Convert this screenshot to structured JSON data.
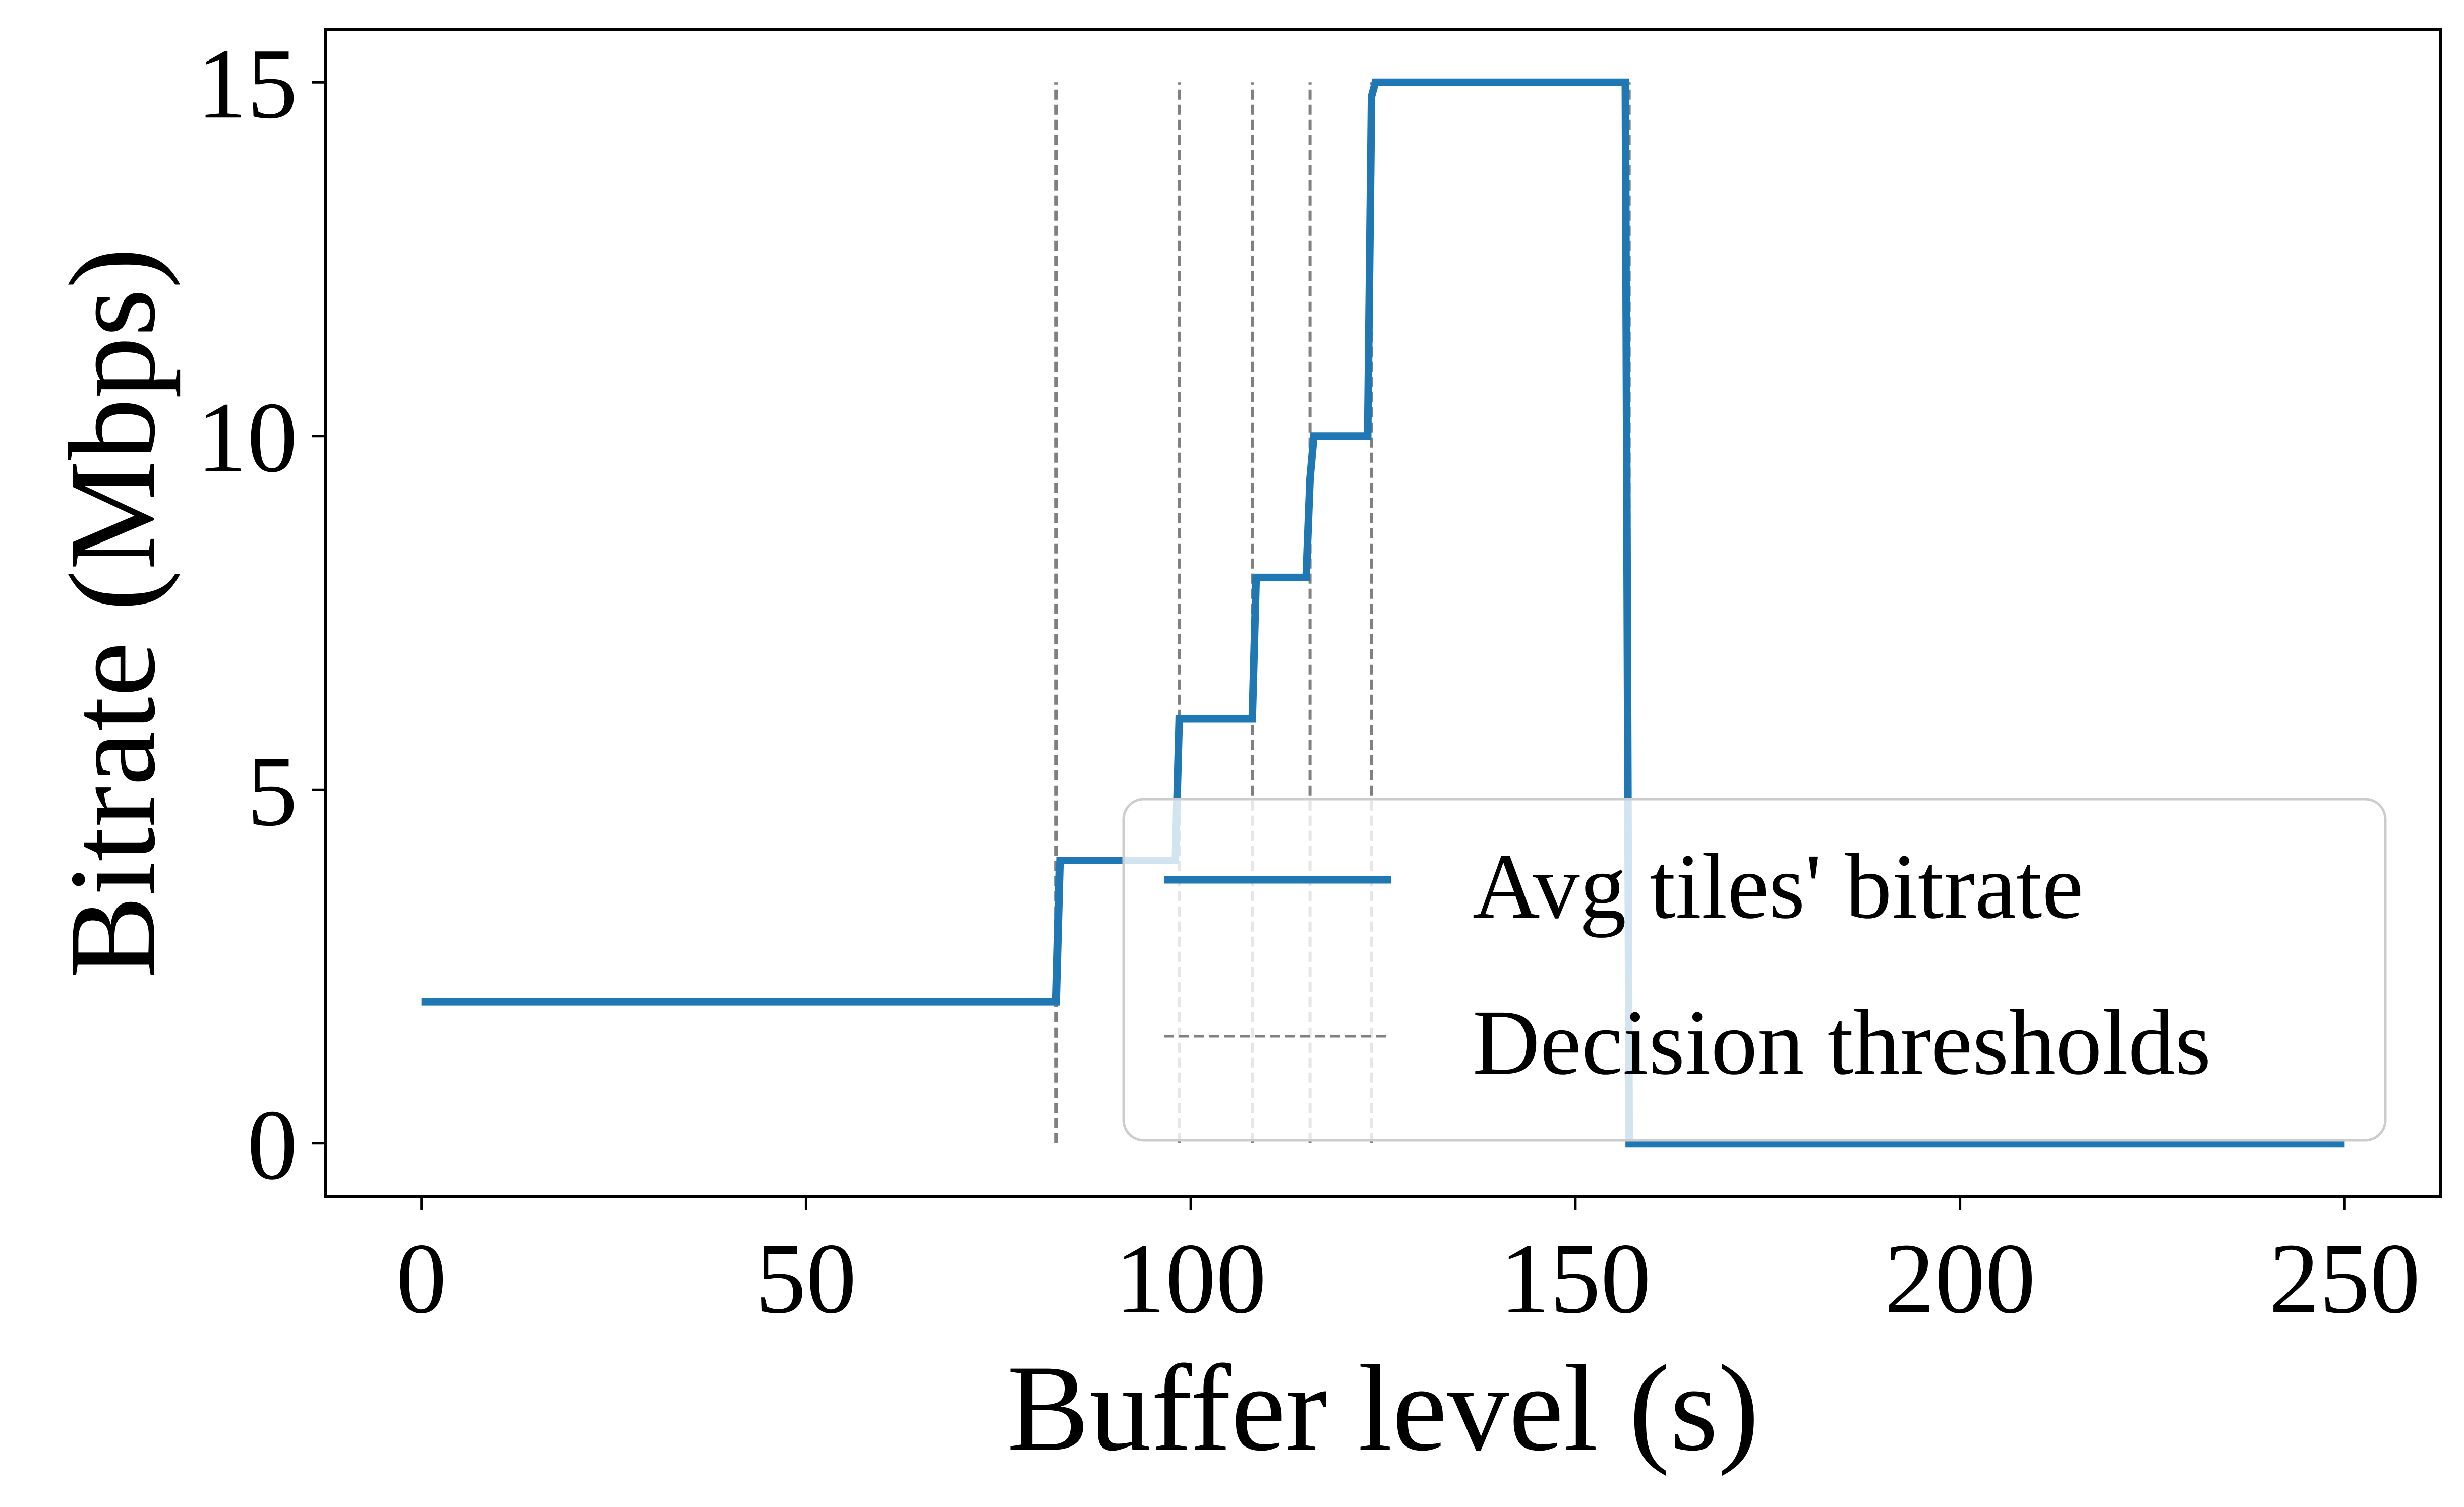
{
  "chart_data": {
    "type": "line",
    "title": "",
    "xlabel": "Buffer level (s)",
    "ylabel": "Bitrate (Mbps)",
    "xlim": [
      -12.5,
      262.5
    ],
    "ylim": [
      -0.75,
      15.75
    ],
    "xticks": [
      0,
      50,
      100,
      150,
      200,
      250
    ],
    "yticks": [
      0,
      5,
      10,
      15
    ],
    "xtick_labels": [
      "0",
      "50",
      "100",
      "150",
      "200",
      "250"
    ],
    "ytick_labels": [
      "0",
      "5",
      "10",
      "15"
    ],
    "grid": false,
    "legend_position": "lower-right",
    "series": [
      {
        "name": "Avg tiles' bitrate",
        "style": "solid",
        "color": "#1f77b4",
        "x": [
          0,
          82.5,
          83,
          98,
          98.5,
          108,
          108.5,
          115,
          115.5,
          116,
          123,
          123.5,
          124,
          156.5,
          157,
          250
        ],
        "y": [
          2,
          2,
          4,
          4,
          6,
          6,
          8,
          8,
          9.4,
          10,
          10,
          14.8,
          15,
          15,
          0,
          0
        ]
      }
    ],
    "thresholds": {
      "name": "Decision thresholds",
      "style": "dashed",
      "color": "#808080",
      "x": [
        82.5,
        98.5,
        108,
        115.5,
        123.5,
        157
      ],
      "y_range": [
        0,
        15
      ]
    }
  }
}
